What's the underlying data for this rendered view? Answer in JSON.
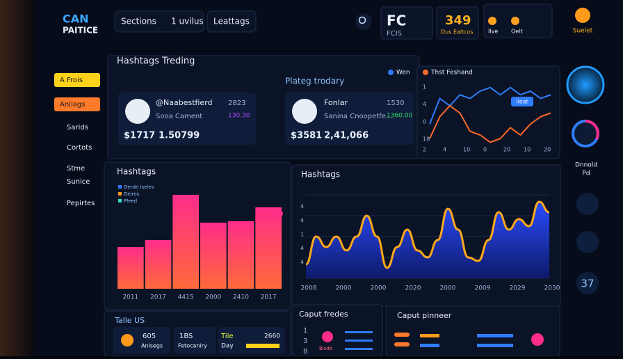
{
  "brand": {
    "line1": "CAN",
    "line2": "PAITICE"
  },
  "tabs": [
    "Sections",
    "1 uvilus",
    "Leattags"
  ],
  "header": {
    "fc": {
      "big": "FC",
      "small": "FCIS"
    },
    "count": {
      "big": "349",
      "small": "Dus Ealtcos"
    },
    "mini": [
      "Ilve",
      "Oelt"
    ],
    "profile": "Suelet"
  },
  "sidebar": [
    "A Frois",
    "Anilags",
    "Sarids",
    "Cortots",
    "Stme",
    "Sunice",
    "Pepirtes"
  ],
  "trending": {
    "title": "Hashtags Treding",
    "cards": [
      {
        "handle": "@Naabestfierd",
        "sub": "Sooa Cament",
        "price": "$1717",
        "volume": "1.50799",
        "meta1": "2823",
        "meta2": "130.30"
      },
      {
        "handle": "Fonlar",
        "sub": "Sanina Cnoopetfe...",
        "price": "$3581",
        "volume": "2,41,066",
        "meta1": "1530",
        "meta2": "1360.00"
      }
    ]
  },
  "line_panel": {
    "title": "Plateg trodary",
    "legend": [
      "Wen",
      "Thst Feshand"
    ],
    "badge": "Ileat",
    "y_labels": [
      "1",
      "4",
      "0",
      "18"
    ],
    "x_labels": [
      "2",
      "4",
      "10",
      "0",
      "20",
      "10",
      "20"
    ],
    "ylim": [
      0,
      100
    ],
    "series": [
      {
        "name": "Wen",
        "color": "#2f7dff",
        "values": [
          35,
          70,
          60,
          75,
          70,
          80,
          85,
          75,
          85,
          75,
          80,
          70,
          75
        ]
      },
      {
        "name": "Thst Feshand",
        "color": "#ff6a2a",
        "values": [
          15,
          45,
          60,
          50,
          25,
          20,
          10,
          15,
          30,
          20,
          35,
          45,
          50
        ]
      }
    ]
  },
  "bar_panel": {
    "title": "Hashtags",
    "legend": [
      "Derde Iseies",
      "Deiros",
      "Pleed"
    ],
    "categories": [
      "2011",
      "2017",
      "4415",
      "2000",
      "2410",
      "2017"
    ],
    "values": [
      60,
      70,
      135,
      95,
      97,
      117
    ],
    "ylim": [
      0,
      140
    ]
  },
  "wave_panel": {
    "title": "Hashtags",
    "y_labels": [
      "4",
      "4",
      "1",
      "4",
      "4"
    ],
    "x_labels": [
      "2008",
      "2000",
      "2000",
      "2020",
      "2000",
      "2009",
      "2029",
      "2030"
    ],
    "ylim": [
      0,
      120
    ],
    "values": [
      20,
      60,
      45,
      60,
      40,
      60,
      90,
      60,
      15,
      45,
      70,
      40,
      30,
      55,
      100,
      70,
      30,
      25,
      55,
      95,
      70,
      85,
      75,
      110,
      95
    ]
  },
  "bottom": {
    "talle": {
      "title": "Talle US",
      "items": [
        {
          "big": "605",
          "small": "Anlsegs"
        },
        {
          "big": "1BS",
          "small": "Fetocaniry"
        },
        {
          "big": "Tile",
          "small": "Day",
          "extra": "2660"
        }
      ]
    },
    "fredes": {
      "title": "Caput fredes",
      "rows": [
        "1",
        "3",
        "8"
      ],
      "tag": "Bisde"
    },
    "pinneer": {
      "title": "Caput pinneer"
    }
  },
  "right": {
    "label1": "Dnnold",
    "label2": "Pd",
    "number": "37"
  }
}
